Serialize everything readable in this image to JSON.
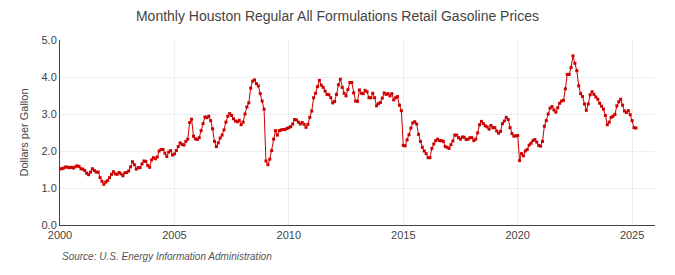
{
  "chart_data": {
    "type": "line",
    "title": "Monthly Houston Regular All Formulations Retail Gasoline Prices",
    "ylabel": "Dollars per Gallon",
    "annotations": [
      "Source: U.S. Energy Information Administration"
    ],
    "color": "#cc0000",
    "marker": "square",
    "line_style": "solid",
    "grid": true,
    "xlim": [
      2000,
      2026
    ],
    "ylim": [
      0.0,
      5.0
    ],
    "xticks": [
      2000,
      2005,
      2010,
      2015,
      2020,
      2025
    ],
    "yticks": [
      {
        "value": 0.0,
        "label": "0.0"
      },
      {
        "value": 1.0,
        "label": "1.0"
      },
      {
        "value": 2.0,
        "label": "2.0"
      },
      {
        "value": 3.0,
        "label": "3.0"
      },
      {
        "value": 4.0,
        "label": "4.0"
      },
      {
        "value": 5.0,
        "label": "5.0"
      }
    ],
    "x": [
      2000,
      2000.0833,
      2000.1667,
      2000.25,
      2000.3333,
      2000.4167,
      2000.5,
      2000.5833,
      2000.6667,
      2000.75,
      2000.8333,
      2000.9167,
      2001,
      2001.0833,
      2001.1667,
      2001.25,
      2001.3333,
      2001.4167,
      2001.5,
      2001.5833,
      2001.6667,
      2001.75,
      2001.8333,
      2001.9167,
      2002,
      2002.0833,
      2002.1667,
      2002.25,
      2002.3333,
      2002.4167,
      2002.5,
      2002.5833,
      2002.6667,
      2002.75,
      2002.8333,
      2002.9167,
      2003,
      2003.0833,
      2003.1667,
      2003.25,
      2003.3333,
      2003.4167,
      2003.5,
      2003.5833,
      2003.6667,
      2003.75,
      2003.8333,
      2003.9167,
      2004,
      2004.0833,
      2004.1667,
      2004.25,
      2004.3333,
      2004.4167,
      2004.5,
      2004.5833,
      2004.6667,
      2004.75,
      2004.8333,
      2004.9167,
      2005,
      2005.0833,
      2005.1667,
      2005.25,
      2005.3333,
      2005.4167,
      2005.5,
      2005.5833,
      2005.6667,
      2005.75,
      2005.8333,
      2005.9167,
      2006,
      2006.0833,
      2006.1667,
      2006.25,
      2006.3333,
      2006.4167,
      2006.5,
      2006.5833,
      2006.6667,
      2006.75,
      2006.8333,
      2006.9167,
      2007,
      2007.0833,
      2007.1667,
      2007.25,
      2007.3333,
      2007.4167,
      2007.5,
      2007.5833,
      2007.6667,
      2007.75,
      2007.8333,
      2007.9167,
      2008,
      2008.0833,
      2008.1667,
      2008.25,
      2008.3333,
      2008.4167,
      2008.5,
      2008.5833,
      2008.6667,
      2008.75,
      2008.8333,
      2008.9167,
      2009,
      2009.0833,
      2009.1667,
      2009.25,
      2009.3333,
      2009.4167,
      2009.5,
      2009.5833,
      2009.6667,
      2009.75,
      2009.8333,
      2009.9167,
      2010,
      2010.0833,
      2010.1667,
      2010.25,
      2010.3333,
      2010.4167,
      2010.5,
      2010.5833,
      2010.6667,
      2010.75,
      2010.8333,
      2010.9167,
      2011,
      2011.0833,
      2011.1667,
      2011.25,
      2011.3333,
      2011.4167,
      2011.5,
      2011.5833,
      2011.6667,
      2011.75,
      2011.8333,
      2011.9167,
      2012,
      2012.0833,
      2012.1667,
      2012.25,
      2012.3333,
      2012.4167,
      2012.5,
      2012.5833,
      2012.6667,
      2012.75,
      2012.8333,
      2012.9167,
      2013,
      2013.0833,
      2013.1667,
      2013.25,
      2013.3333,
      2013.4167,
      2013.5,
      2013.5833,
      2013.6667,
      2013.75,
      2013.8333,
      2013.9167,
      2014,
      2014.0833,
      2014.1667,
      2014.25,
      2014.3333,
      2014.4167,
      2014.5,
      2014.5833,
      2014.6667,
      2014.75,
      2014.8333,
      2014.9167,
      2015,
      2015.0833,
      2015.1667,
      2015.25,
      2015.3333,
      2015.4167,
      2015.5,
      2015.5833,
      2015.6667,
      2015.75,
      2015.8333,
      2015.9167,
      2016,
      2016.0833,
      2016.1667,
      2016.25,
      2016.3333,
      2016.4167,
      2016.5,
      2016.5833,
      2016.6667,
      2016.75,
      2016.8333,
      2016.9167,
      2017,
      2017.0833,
      2017.1667,
      2017.25,
      2017.3333,
      2017.4167,
      2017.5,
      2017.5833,
      2017.6667,
      2017.75,
      2017.8333,
      2017.9167,
      2018,
      2018.0833,
      2018.1667,
      2018.25,
      2018.3333,
      2018.4167,
      2018.5,
      2018.5833,
      2018.6667,
      2018.75,
      2018.8333,
      2018.9167,
      2019,
      2019.0833,
      2019.1667,
      2019.25,
      2019.3333,
      2019.4167,
      2019.5,
      2019.5833,
      2019.6667,
      2019.75,
      2019.8333,
      2019.9167,
      2020,
      2020.0833,
      2020.1667,
      2020.25,
      2020.3333,
      2020.4167,
      2020.5,
      2020.5833,
      2020.6667,
      2020.75,
      2020.8333,
      2020.9167,
      2021,
      2021.0833,
      2021.1667,
      2021.25,
      2021.3333,
      2021.4167,
      2021.5,
      2021.5833,
      2021.6667,
      2021.75,
      2021.8333,
      2021.9167,
      2022,
      2022.0833,
      2022.1667,
      2022.25,
      2022.3333,
      2022.4167,
      2022.5,
      2022.5833,
      2022.6667,
      2022.75,
      2022.8333,
      2022.9167,
      2023,
      2023.0833,
      2023.1667,
      2023.25,
      2023.3333,
      2023.4167,
      2023.5,
      2023.5833,
      2023.6667,
      2023.75,
      2023.8333,
      2023.9167,
      2024,
      2024.0833,
      2024.1667,
      2024.25,
      2024.3333,
      2024.4167,
      2024.5,
      2024.5833,
      2024.6667,
      2024.75,
      2024.8333,
      2024.9167,
      2025,
      2025.0833,
      2025.1667
    ],
    "values": [
      1.52,
      1.52,
      1.54,
      1.57,
      1.56,
      1.55,
      1.56,
      1.54,
      1.57,
      1.6,
      1.58,
      1.52,
      1.51,
      1.47,
      1.4,
      1.36,
      1.43,
      1.52,
      1.47,
      1.43,
      1.43,
      1.28,
      1.18,
      1.1,
      1.16,
      1.2,
      1.28,
      1.37,
      1.44,
      1.38,
      1.37,
      1.42,
      1.38,
      1.33,
      1.41,
      1.42,
      1.46,
      1.57,
      1.71,
      1.63,
      1.51,
      1.55,
      1.55,
      1.65,
      1.73,
      1.72,
      1.61,
      1.56,
      1.76,
      1.82,
      1.79,
      1.84,
      2.0,
      2.04,
      2.04,
      1.94,
      1.85,
      1.97,
      2.01,
      1.89,
      1.92,
      2.01,
      2.12,
      2.22,
      2.18,
      2.16,
      2.26,
      2.32,
      2.77,
      2.86,
      2.4,
      2.33,
      2.31,
      2.36,
      2.55,
      2.74,
      2.92,
      2.9,
      2.94,
      2.82,
      2.6,
      2.26,
      2.12,
      2.22,
      2.35,
      2.43,
      2.57,
      2.78,
      2.94,
      3.01,
      2.96,
      2.87,
      2.81,
      2.79,
      2.83,
      2.71,
      2.78,
      3.0,
      3.19,
      3.3,
      3.7,
      3.89,
      3.92,
      3.82,
      3.76,
      3.55,
      3.35,
      3.13,
      1.73,
      1.63,
      1.78,
      2.01,
      2.32,
      2.55,
      2.43,
      2.55,
      2.57,
      2.58,
      2.58,
      2.61,
      2.63,
      2.66,
      2.73,
      2.85,
      2.84,
      2.78,
      2.73,
      2.77,
      2.72,
      2.64,
      2.72,
      2.91,
      3.08,
      3.44,
      3.56,
      3.74,
      3.91,
      3.78,
      3.72,
      3.62,
      3.53,
      3.52,
      3.44,
      3.3,
      3.34,
      3.53,
      3.79,
      3.94,
      3.72,
      3.56,
      3.49,
      3.66,
      3.85,
      3.85,
      3.57,
      3.35,
      3.34,
      3.65,
      3.56,
      3.55,
      3.64,
      3.6,
      3.44,
      3.44,
      3.56,
      3.44,
      3.22,
      3.28,
      3.31,
      3.43,
      3.57,
      3.53,
      3.55,
      3.49,
      3.55,
      3.38,
      3.44,
      3.47,
      3.24,
      3.09,
      2.15,
      2.14,
      2.3,
      2.44,
      2.62,
      2.76,
      2.79,
      2.73,
      2.45,
      2.26,
      2.1,
      2.0,
      1.93,
      1.82,
      1.82,
      2.07,
      2.19,
      2.28,
      2.32,
      2.28,
      2.28,
      2.26,
      2.12,
      2.1,
      2.07,
      2.17,
      2.27,
      2.43,
      2.43,
      2.36,
      2.32,
      2.38,
      2.37,
      2.31,
      2.32,
      2.36,
      2.36,
      2.28,
      2.32,
      2.49,
      2.71,
      2.8,
      2.74,
      2.68,
      2.65,
      2.59,
      2.69,
      2.63,
      2.63,
      2.54,
      2.48,
      2.53,
      2.74,
      2.81,
      2.91,
      2.85,
      2.63,
      2.47,
      2.4,
      2.41,
      2.42,
      1.74,
      1.93,
      1.87,
      2.0,
      2.04,
      2.16,
      2.21,
      2.28,
      2.31,
      2.24,
      2.15,
      2.13,
      2.26,
      2.67,
      2.82,
      3.0,
      3.16,
      3.2,
      3.11,
      3.05,
      3.17,
      3.29,
      3.35,
      3.37,
      3.68,
      4.07,
      4.07,
      4.26,
      4.57,
      4.37,
      4.17,
      3.76,
      3.55,
      3.47,
      3.27,
      3.1,
      3.27,
      3.52,
      3.6,
      3.53,
      3.46,
      3.4,
      3.29,
      3.21,
      3.13,
      2.96,
      2.71,
      2.78,
      2.91,
      2.94,
      2.99,
      3.22,
      3.33,
      3.4,
      3.24,
      3.08,
      3.04,
      3.09,
      2.98,
      2.82,
      2.63,
      2.62
    ]
  }
}
